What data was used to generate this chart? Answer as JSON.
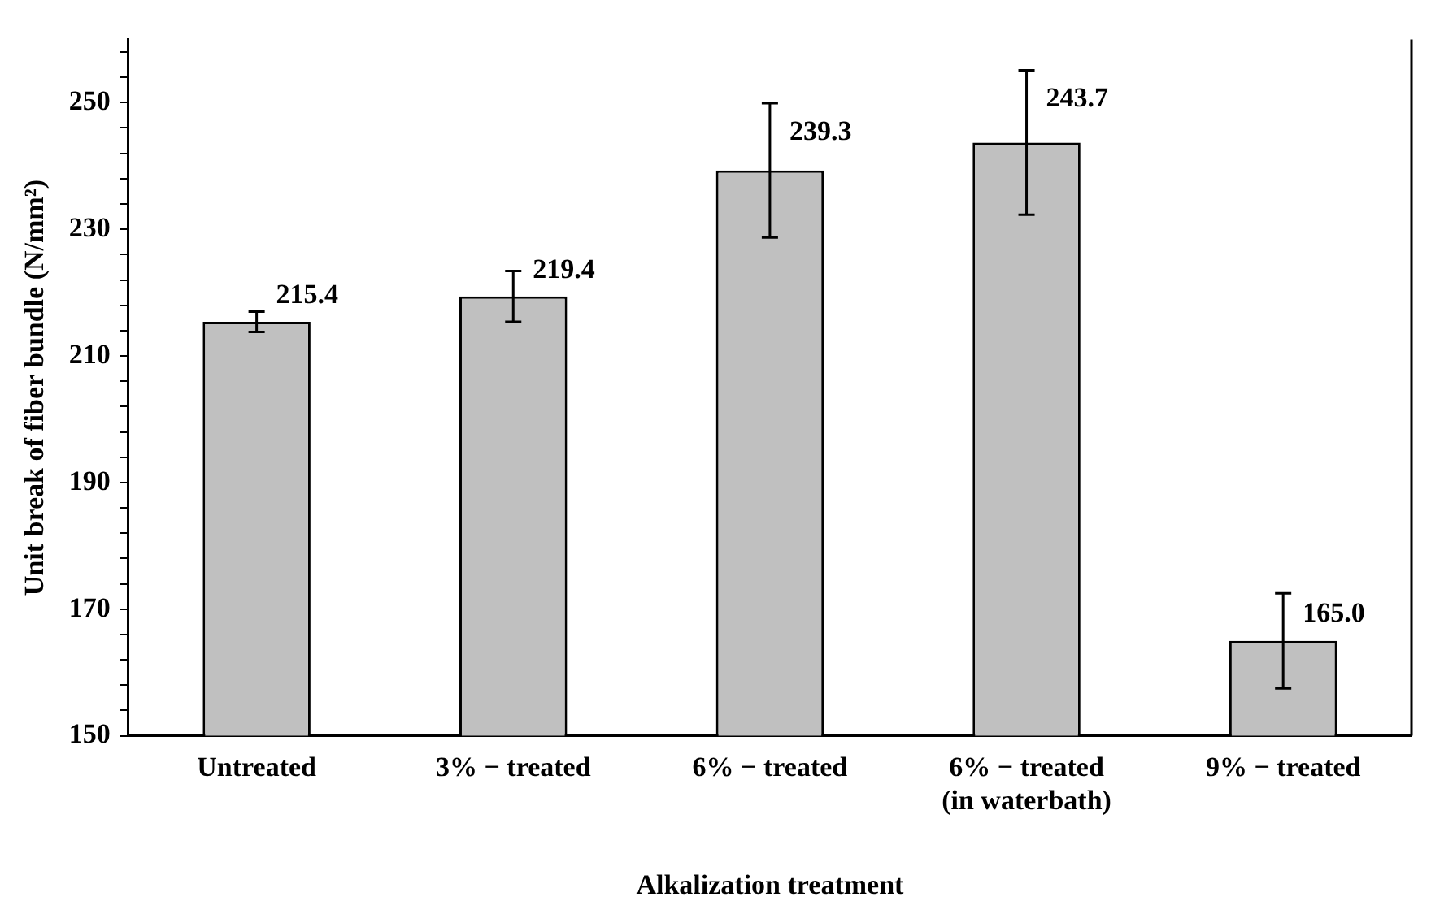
{
  "chart_data": {
    "type": "bar",
    "xlabel": "Alkalization treatment",
    "ylabel": "Unit break of fiber bundle (N/mm²)",
    "categories": [
      "Untreated",
      "3% − treated",
      "6% − treated",
      "6% − treated\n(in waterbath)",
      "9% − treated"
    ],
    "values": [
      215.4,
      219.4,
      239.3,
      243.7,
      165.0
    ],
    "errors": [
      1.6,
      4,
      10.6,
      11.4,
      7.5
    ],
    "color": "#c0c0c0",
    "value_labels": [
      "215.4",
      "219.4",
      "239.3",
      "243.7",
      "165.0"
    ],
    "ylim": [
      150,
      260
    ],
    "yticks": [
      150,
      {
        "value": 154,
        "label": null
      },
      {
        "value": 158,
        "label": null
      },
      {
        "value": 162,
        "label": null
      },
      {
        "value": 166,
        "label": null
      },
      170,
      {
        "value": 174,
        "label": null
      },
      {
        "value": 178,
        "label": null
      },
      {
        "value": 182,
        "label": null
      },
      {
        "value": 186,
        "label": null
      },
      190,
      {
        "value": 194,
        "label": null
      },
      {
        "value": 198,
        "label": null
      },
      {
        "value": 202,
        "label": null
      },
      {
        "value": 206,
        "label": null
      },
      210,
      {
        "value": 214,
        "label": null
      },
      {
        "value": 218,
        "label": null
      },
      {
        "value": 222,
        "label": null
      },
      {
        "value": 226,
        "label": null
      },
      230,
      {
        "value": 234,
        "label": null
      },
      {
        "value": 238,
        "label": null
      },
      {
        "value": 242,
        "label": null
      },
      {
        "value": 246,
        "label": null
      },
      250,
      {
        "value": 254,
        "label": null
      },
      {
        "value": 258,
        "label": null
      }
    ],
    "grid": false,
    "legend": false
  }
}
